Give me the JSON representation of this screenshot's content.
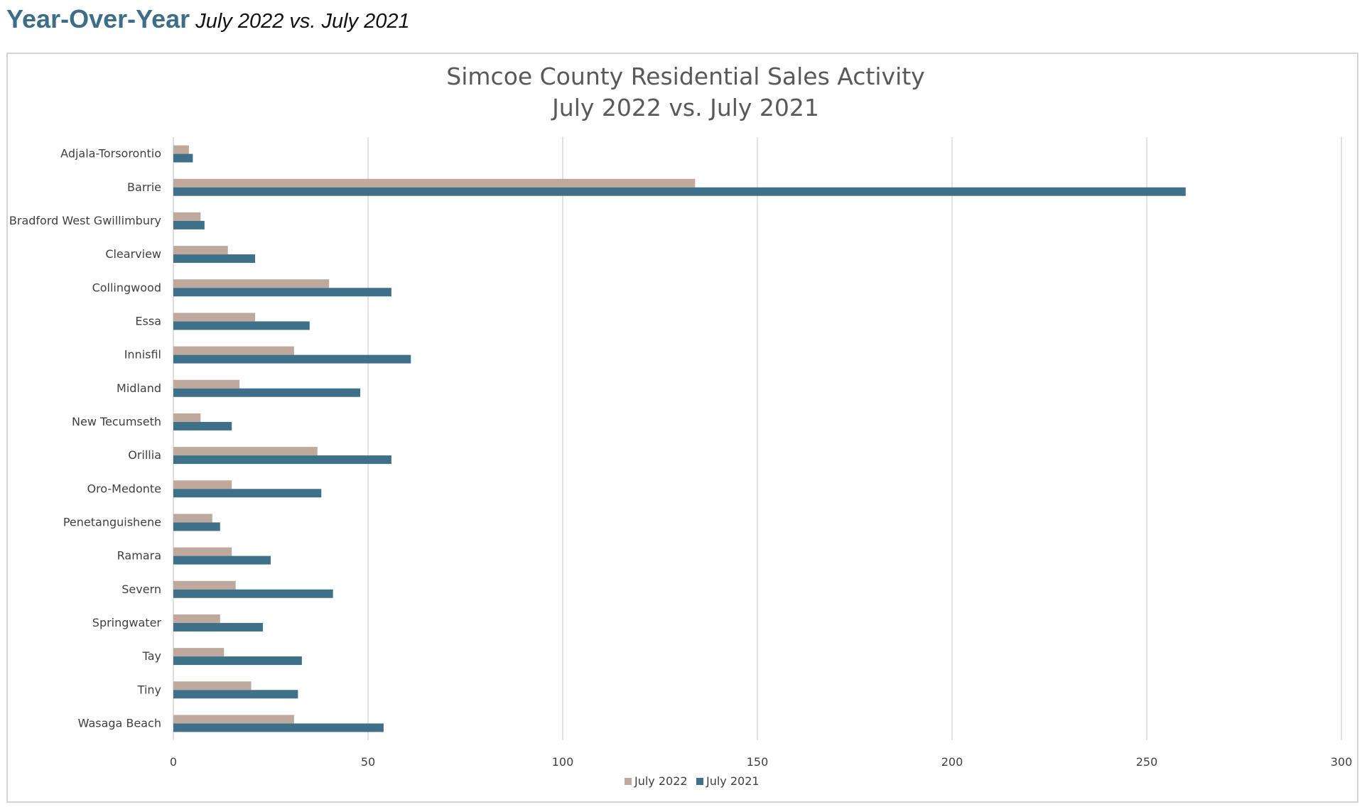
{
  "header": {
    "title": "Year-Over-Year",
    "subtitle": "July 2022 vs. July 2021"
  },
  "colors": {
    "header_title": "#3e6e87",
    "series_2022": "#bfa99c",
    "series_2021": "#3e7189",
    "gridline": "#d9d9d9"
  },
  "chart_data": {
    "type": "bar",
    "orientation": "horizontal",
    "title": "Simcoe County Residential Sales Activity",
    "subtitle": "July 2022 vs. July 2021",
    "categories": [
      "Adjala-Torsorontio",
      "Barrie",
      "Bradford West Gwillimbury",
      "Clearview",
      "Collingwood",
      "Essa",
      "Innisfil",
      "Midland",
      "New Tecumseth",
      "Orillia",
      "Oro-Medonte",
      "Penetanguishene",
      "Ramara",
      "Severn",
      "Springwater",
      "Tay",
      "Tiny",
      "Wasaga Beach"
    ],
    "series": [
      {
        "name": "July 2022",
        "values": [
          4,
          134,
          7,
          14,
          40,
          21,
          31,
          17,
          7,
          37,
          15,
          10,
          15,
          16,
          12,
          13,
          20,
          31
        ]
      },
      {
        "name": "July 2021",
        "values": [
          5,
          260,
          8,
          21,
          56,
          35,
          61,
          48,
          15,
          56,
          38,
          12,
          25,
          41,
          23,
          33,
          32,
          54
        ]
      }
    ],
    "xlim": [
      0,
      300
    ],
    "xticks": [
      "0",
      "50",
      "100",
      "150",
      "200",
      "250",
      "300"
    ],
    "grid": true,
    "legend_position": "bottom"
  }
}
